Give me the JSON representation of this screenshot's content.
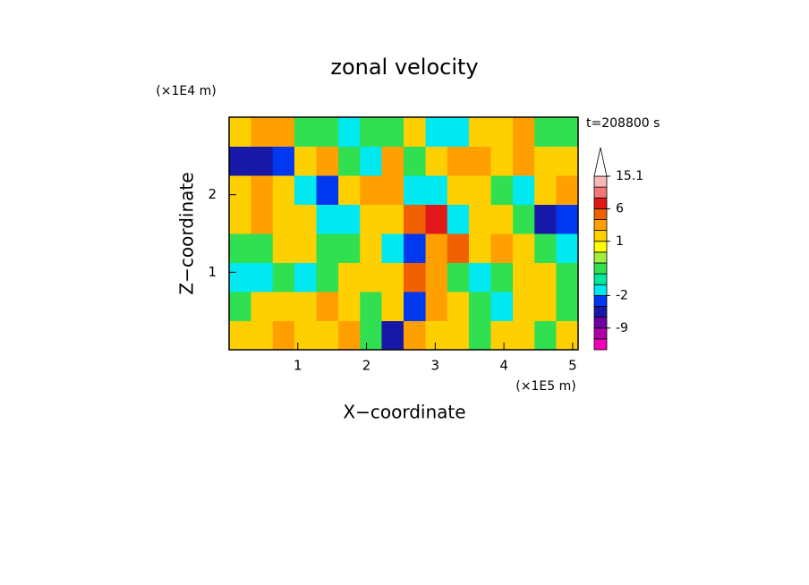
{
  "chart_data": {
    "type": "contour",
    "title": "zonal velocity",
    "x_label": "X−coordinate",
    "y_label": "Z−coordinate",
    "x_unit": "(×1E5 m)",
    "y_unit": "(×1E4 m)",
    "annotation": "t=208800 s",
    "xlim": [
      0,
      5.08
    ],
    "ylim": [
      0,
      3
    ],
    "xticks": [
      1,
      2,
      3,
      4,
      5
    ],
    "yticks": [
      1,
      2
    ],
    "field": {
      "x": [
        0.16,
        0.48,
        0.79,
        1.11,
        1.43,
        1.75,
        2.06,
        2.38,
        2.7,
        3.02,
        3.33,
        3.65,
        3.97,
        4.29,
        4.6,
        4.92
      ],
      "y": [
        0.1875,
        0.5625,
        0.9375,
        1.3125,
        1.6875,
        2.0625,
        2.4375,
        2.8125
      ],
      "z": [
        [
          1.5,
          1.5,
          3,
          1.5,
          1.5,
          3,
          -0.3,
          -5,
          3,
          1.5,
          1.5,
          -0.3,
          1.5,
          1.5,
          -0.3,
          1.5
        ],
        [
          -0.3,
          1.5,
          1.5,
          1.5,
          3,
          1.5,
          -0.3,
          1.5,
          -3,
          3,
          1.5,
          -0.3,
          -1.5,
          1.5,
          1.5,
          -0.3
        ],
        [
          -1.5,
          -1.5,
          -0.3,
          -1.5,
          -0.3,
          1.5,
          1.5,
          1.5,
          4.5,
          3,
          -0.3,
          -1.5,
          -0.3,
          1.5,
          1.5,
          -0.3
        ],
        [
          -0.3,
          -0.3,
          1.5,
          1.5,
          -0.3,
          -0.3,
          1.5,
          -1.5,
          -3,
          3,
          5,
          1.5,
          3,
          1.5,
          -0.3,
          -1.5
        ],
        [
          1.5,
          3,
          1.5,
          1.5,
          -1.5,
          -1.5,
          1.5,
          1.5,
          5,
          7,
          -1.5,
          1.5,
          1.5,
          -0.3,
          -5,
          -3
        ],
        [
          1.5,
          3,
          1.5,
          -1.5,
          -3,
          1.5,
          3,
          3,
          -1.5,
          -1.5,
          1.5,
          1.5,
          -0.3,
          -1.5,
          1.5,
          3
        ],
        [
          -5,
          -5,
          -3,
          1.5,
          3,
          -0.3,
          -1.5,
          3,
          -0.3,
          1.5,
          3,
          3,
          1.5,
          3,
          1.5,
          1.5
        ],
        [
          1.5,
          3,
          3,
          -0.3,
          -0.3,
          -1.5,
          -0.3,
          -0.3,
          1.5,
          -1.5,
          -1.5,
          1.5,
          1.5,
          3,
          -0.3,
          -0.3
        ]
      ]
    },
    "colorbar": {
      "levels": [
        -15,
        -12,
        -9,
        -6,
        -4,
        -2,
        -1,
        -0.5,
        0,
        0.5,
        1,
        2,
        4,
        6,
        9,
        12,
        15.1
      ],
      "colors": [
        "#f000b8",
        "#b000a8",
        "#7000a0",
        "#1818a8",
        "#0038f0",
        "#00e8f0",
        "#00e8a0",
        "#30e050",
        "#a0f040",
        "#ffff00",
        "#ffd000",
        "#ffa000",
        "#f06000",
        "#e01818",
        "#f07878",
        "#f8b8b8"
      ],
      "extend_color": "#ffffff",
      "ticks": [
        15.1,
        6,
        1,
        -2,
        -9
      ]
    }
  }
}
